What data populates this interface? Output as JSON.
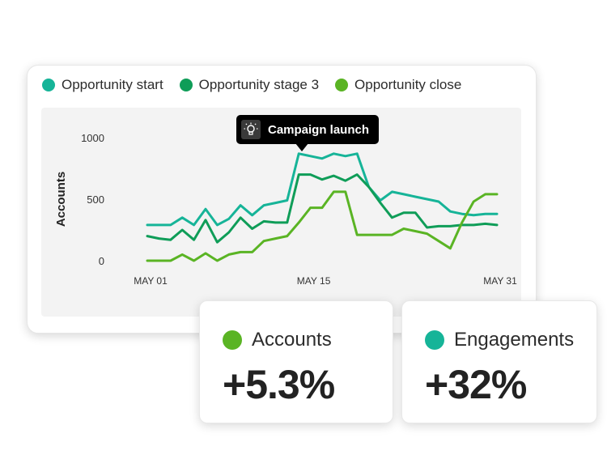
{
  "legend": [
    {
      "label": "Opportunity start",
      "color": "#16b498"
    },
    {
      "label": "Opportunity stage 3",
      "color": "#0f9d58"
    },
    {
      "label": "Opportunity close",
      "color": "#5ab424"
    }
  ],
  "tooltip": {
    "label": "Campaign launch",
    "icon": "lightbulb-icon"
  },
  "chart_data": {
    "type": "line",
    "ylabel": "Accounts",
    "xlabel": "",
    "ylim": [
      0,
      1000
    ],
    "yticks": [
      "0",
      "500",
      "1000"
    ],
    "xticks": [
      {
        "label": "MAY 01",
        "x": 1
      },
      {
        "label": "MAY 15",
        "x": 15
      },
      {
        "label": "MAY 31",
        "x": 31
      }
    ],
    "grid": false,
    "legend_position": "top-left",
    "x": [
      1,
      2,
      3,
      4,
      5,
      6,
      7,
      8,
      9,
      10,
      11,
      12,
      13,
      14,
      15,
      16,
      17,
      18,
      19,
      20,
      21,
      22,
      23,
      24,
      25,
      26,
      27,
      28,
      29,
      30,
      31
    ],
    "series": [
      {
        "name": "Opportunity start",
        "color": "#16b498",
        "values": [
          290,
          290,
          290,
          350,
          290,
          420,
          290,
          340,
          450,
          370,
          450,
          470,
          490,
          870,
          850,
          830,
          870,
          850,
          870,
          600,
          490,
          560,
          540,
          520,
          500,
          480,
          400,
          380,
          370,
          380,
          380
        ]
      },
      {
        "name": "Opportunity stage 3",
        "color": "#0f9d58",
        "values": [
          200,
          180,
          170,
          250,
          170,
          330,
          150,
          230,
          350,
          260,
          320,
          310,
          310,
          700,
          700,
          660,
          690,
          650,
          700,
          600,
          470,
          350,
          390,
          390,
          270,
          280,
          280,
          290,
          290,
          300,
          290
        ]
      },
      {
        "name": "Opportunity close",
        "color": "#5ab424",
        "values": [
          0,
          0,
          0,
          50,
          0,
          60,
          0,
          50,
          70,
          70,
          160,
          180,
          200,
          310,
          430,
          430,
          560,
          560,
          210,
          210,
          210,
          210,
          260,
          240,
          220,
          160,
          100,
          310,
          480,
          540,
          540
        ]
      }
    ],
    "annotations": [
      "Campaign launch"
    ]
  },
  "stats": [
    {
      "label": "Accounts",
      "value": "+5.3%",
      "color": "#5ab424"
    },
    {
      "label": "Engagements",
      "value": "+32%",
      "color": "#16b498"
    }
  ]
}
